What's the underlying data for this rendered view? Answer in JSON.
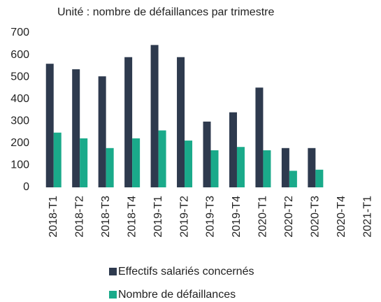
{
  "chart_data": {
    "type": "bar",
    "title": "Unité : nombre de défaillances par trimestre",
    "categories": [
      "2018-T1",
      "2018-T2",
      "2018-T3",
      "2018-T4",
      "2019-T1",
      "2019-T2",
      "2019-T3",
      "2019-T4",
      "2020-T1",
      "2020-T2",
      "2020-T3",
      "2020-T4",
      "2021-T1"
    ],
    "series": [
      {
        "name": "Effectifs salariés concernés",
        "color": "#2e3a4e",
        "values": [
          560,
          535,
          503,
          590,
          645,
          590,
          298,
          340,
          452,
          178,
          178,
          null,
          null
        ]
      },
      {
        "name": "Nombre de défaillances",
        "color": "#1aaa8a",
        "values": [
          248,
          222,
          178,
          222,
          258,
          212,
          168,
          183,
          168,
          75,
          80,
          null,
          null
        ]
      }
    ],
    "ylim": [
      0,
      700
    ],
    "yticks": [
      0,
      100,
      200,
      300,
      400,
      500,
      600,
      700
    ],
    "grid": false
  }
}
